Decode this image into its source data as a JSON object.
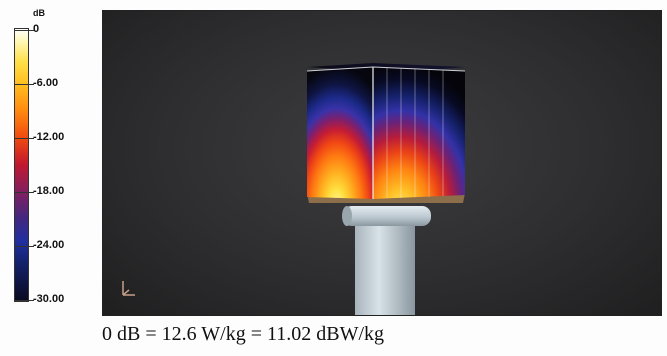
{
  "legend": {
    "unit": "dB",
    "ticks": [
      {
        "label": "0",
        "level": 0.0
      },
      {
        "label": "-6.00",
        "level": 0.2
      },
      {
        "label": "-12.00",
        "level": 0.4
      },
      {
        "label": "-18.00",
        "level": 0.6
      },
      {
        "label": "-24.00",
        "level": 0.8
      },
      {
        "label": "-30.00",
        "level": 1.0
      }
    ]
  },
  "caption": "0 dB = 12.6 W/kg = 11.02 dBW/kg"
}
